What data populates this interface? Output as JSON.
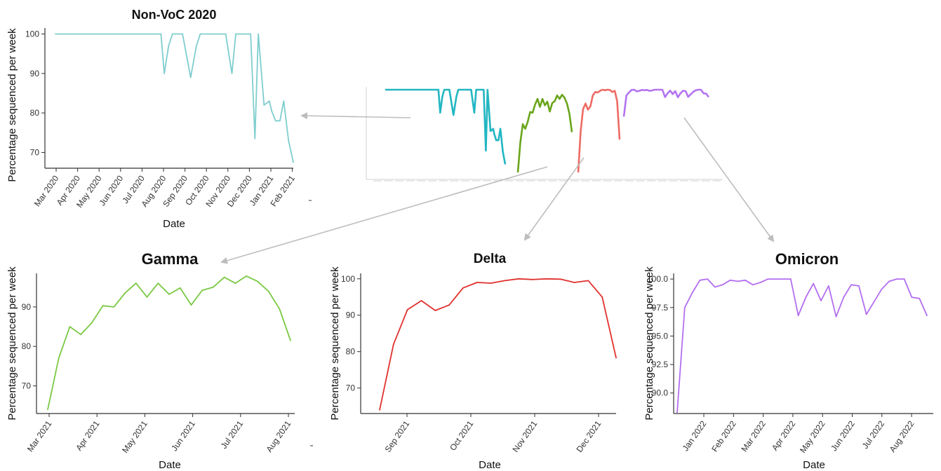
{
  "colors": {
    "nonvoc": "#7fcdce",
    "gamma": "#7ac943",
    "delta": "#e0302d",
    "omicron": "#b36ef0",
    "overview_nonvoc": "#22b6c2",
    "overview_gamma": "#6aa51a",
    "overview_delta": "#ee6b63",
    "overview_omicron": "#b374f0",
    "arrow": "#bdbdbd"
  },
  "chart_data": [
    {
      "id": "nonvoc",
      "type": "line",
      "title": "Non-VoC 2020",
      "xlabel": "Date",
      "ylabel": "Percentage sequenced per week",
      "x_ticks": [
        "Mar 2020",
        "Apr 2020",
        "May 2020",
        "Jun 2020",
        "Jul 2020",
        "Aug 2020",
        "Sep 2020",
        "Oct 2020",
        "Nov 2020",
        "Dec 2020",
        "Jan 2021",
        "Feb 2021"
      ],
      "y_ticks": [
        70,
        80,
        90,
        100
      ],
      "ylim": [
        66,
        101.5
      ],
      "series": [
        {
          "x": [
            0,
            4,
            8,
            12,
            16,
            20,
            22,
            22.7,
            23.6,
            24.4,
            26.5,
            28.2,
            29.4,
            30.2,
            32.1,
            35.5,
            36.8,
            37.6,
            40.7,
            41.6,
            42.3,
            43.5,
            44.6,
            45.1,
            45.9,
            46.8,
            47.6,
            48.6,
            49.6
          ],
          "y": [
            100,
            100,
            100,
            100,
            100,
            100,
            100,
            90,
            97,
            100,
            100,
            89,
            97,
            100,
            100,
            100,
            90,
            100,
            100,
            73.5,
            100,
            82,
            83,
            80.5,
            78,
            78,
            83,
            73,
            67.5
          ]
        }
      ]
    },
    {
      "id": "gamma",
      "type": "line",
      "title": "Gamma",
      "xlabel": "Date",
      "ylabel": "Percentage sequenced per week",
      "x_ticks": [
        "Mar 2021",
        "Apr 2021",
        "May 2021",
        "Jun 2021",
        "Jul 2021",
        "Aug 2021"
      ],
      "y_ticks": [
        70,
        80,
        90
      ],
      "ylim": [
        63,
        98.5
      ],
      "series": [
        {
          "x": [
            0,
            1,
            2,
            3,
            4,
            5,
            6,
            7,
            8,
            9,
            10,
            11,
            12,
            13,
            14,
            15,
            16,
            17,
            18,
            19,
            20,
            21,
            22
          ],
          "y": [
            64,
            77,
            85,
            83,
            86,
            90.3,
            90,
            93.5,
            96,
            92.5,
            96,
            93.2,
            94.8,
            90.5,
            94.2,
            95,
            97.5,
            96,
            97.8,
            96.5,
            94,
            89.5,
            81.5
          ]
        }
      ]
    },
    {
      "id": "delta",
      "type": "line",
      "title": "Delta",
      "xlabel": "Date",
      "ylabel": "Percentage sequenced per week",
      "x_ticks": [
        "Sep 2021",
        "Oct 2021",
        "Nov 2021",
        "Dec 2021"
      ],
      "y_ticks": [
        70,
        80,
        90,
        100
      ],
      "ylim": [
        63,
        101.5
      ],
      "series": [
        {
          "x": [
            0,
            1,
            2,
            3,
            4,
            5,
            6,
            7,
            8,
            9,
            10,
            11,
            12,
            13,
            14,
            15,
            16,
            17
          ],
          "y": [
            64,
            82,
            91.5,
            94,
            91.3,
            92.8,
            97.5,
            99,
            98.8,
            99.5,
            100,
            99.8,
            100,
            99.9,
            99,
            99.5,
            95,
            78.3
          ]
        }
      ]
    },
    {
      "id": "omicron",
      "type": "line",
      "title": "Omicron",
      "xlabel": "Date",
      "ylabel": "Percentage sequenced per week",
      "x_ticks": [
        "Jan 2022",
        "Feb 2022",
        "Mar 2022",
        "Apr 2022",
        "May 2022",
        "Jun 2022",
        "Jul 2022",
        "Aug 2022"
      ],
      "y_ticks": [
        "90.0",
        "92.5",
        "95.0",
        "97.5",
        "100.0"
      ],
      "ylim": [
        88.2,
        100.5
      ],
      "series": [
        {
          "x": [
            0,
            1,
            2,
            3,
            4,
            5,
            6,
            7,
            8,
            9,
            10,
            11,
            12,
            13,
            14,
            15,
            16,
            17,
            18,
            19,
            20,
            21,
            22,
            23,
            24,
            25,
            26,
            27,
            28,
            29,
            30,
            31,
            32,
            33
          ],
          "y": [
            88.3,
            97.5,
            98.8,
            99.9,
            100,
            99.3,
            99.5,
            99.9,
            99.8,
            99.9,
            99.5,
            99.7,
            100,
            100,
            100,
            100,
            96.8,
            98.4,
            99.6,
            98.1,
            99.4,
            96.7,
            98.4,
            99.5,
            99.4,
            96.9,
            98,
            99.1,
            99.8,
            100,
            100,
            98.4,
            98.3,
            96.8
          ]
        }
      ]
    }
  ]
}
